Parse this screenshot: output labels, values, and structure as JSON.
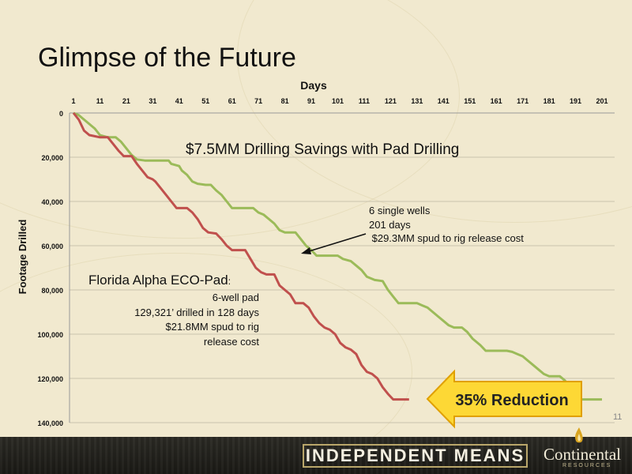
{
  "slide": {
    "title": "Glimpse of the Future",
    "page_number": "11"
  },
  "footer": {
    "tagline": "INDEPENDENT MEANS",
    "company": "Continental",
    "company_sub": "RESOURCES"
  },
  "colors": {
    "single_wells": "#9bbb59",
    "pad": "#c0504d",
    "arrow_fill": "#fdd835",
    "arrow_stroke": "#e0a000",
    "background": "#f1e9cf"
  },
  "chart_data": {
    "type": "line",
    "xlabel": "Days",
    "ylabel": "Footage Drilled",
    "x_ticks": [
      1,
      11,
      21,
      31,
      41,
      51,
      61,
      71,
      81,
      91,
      101,
      111,
      121,
      131,
      141,
      151,
      161,
      171,
      181,
      191,
      201
    ],
    "y_ticks": [
      "0",
      "20,000",
      "40,000",
      "60,000",
      "80,000",
      "100,000",
      "120,000",
      "140,000"
    ],
    "xlim": [
      1,
      205
    ],
    "ylim": [
      0,
      140000
    ],
    "y_inverted": true,
    "x_axis_position": "top",
    "grid": "horizontal",
    "series": [
      {
        "key": "single",
        "color": "#9bbb59",
        "points": [
          [
            1,
            0
          ],
          [
            3,
            1000
          ],
          [
            5,
            3000
          ],
          [
            7,
            5000
          ],
          [
            9,
            7000
          ],
          [
            11,
            10000
          ],
          [
            14,
            11000
          ],
          [
            17,
            11000
          ],
          [
            19,
            13000
          ],
          [
            21,
            16000
          ],
          [
            23,
            19000
          ],
          [
            25,
            21000
          ],
          [
            28,
            21500
          ],
          [
            31,
            21500
          ],
          [
            35,
            21500
          ],
          [
            37,
            21500
          ],
          [
            38,
            23000
          ],
          [
            41,
            24000
          ],
          [
            42,
            26000
          ],
          [
            44,
            28000
          ],
          [
            46,
            31000
          ],
          [
            48,
            32000
          ],
          [
            51,
            32500
          ],
          [
            53,
            32500
          ],
          [
            55,
            35000
          ],
          [
            57,
            37000
          ],
          [
            59,
            40000
          ],
          [
            61,
            43000
          ],
          [
            65,
            43000
          ],
          [
            69,
            43000
          ],
          [
            71,
            45000
          ],
          [
            73,
            46000
          ],
          [
            75,
            48000
          ],
          [
            77,
            50000
          ],
          [
            79,
            53000
          ],
          [
            81,
            54000
          ],
          [
            85,
            54000
          ],
          [
            87,
            57000
          ],
          [
            89,
            60000
          ],
          [
            91,
            62000
          ],
          [
            93,
            64500
          ],
          [
            101,
            64500
          ],
          [
            103,
            66000
          ],
          [
            106,
            67000
          ],
          [
            108,
            69000
          ],
          [
            110,
            71000
          ],
          [
            112,
            74000
          ],
          [
            115,
            75500
          ],
          [
            118,
            76000
          ],
          [
            120,
            80000
          ],
          [
            122,
            83000
          ],
          [
            124,
            86000
          ],
          [
            131,
            86000
          ],
          [
            133,
            87000
          ],
          [
            135,
            88000
          ],
          [
            137,
            90000
          ],
          [
            139,
            92000
          ],
          [
            141,
            94000
          ],
          [
            143,
            96000
          ],
          [
            145,
            97000
          ],
          [
            148,
            97000
          ],
          [
            150,
            99000
          ],
          [
            152,
            102000
          ],
          [
            155,
            105000
          ],
          [
            157,
            107500
          ],
          [
            165,
            107500
          ],
          [
            167,
            108000
          ],
          [
            169,
            109000
          ],
          [
            171,
            110000
          ],
          [
            173,
            112000
          ],
          [
            175,
            114000
          ],
          [
            177,
            116000
          ],
          [
            179,
            118000
          ],
          [
            181,
            119000
          ],
          [
            185,
            119000
          ],
          [
            187,
            121000
          ],
          [
            189,
            124000
          ],
          [
            191,
            126000
          ],
          [
            193,
            129500
          ],
          [
            201,
            129500
          ]
        ]
      },
      {
        "key": "pad",
        "color": "#c0504d",
        "points": [
          [
            1,
            0
          ],
          [
            3,
            3000
          ],
          [
            5,
            8000
          ],
          [
            7,
            10000
          ],
          [
            9,
            10500
          ],
          [
            11,
            11000
          ],
          [
            14,
            11000
          ],
          [
            16,
            14000
          ],
          [
            18,
            17000
          ],
          [
            20,
            19500
          ],
          [
            23,
            19500
          ],
          [
            25,
            23000
          ],
          [
            27,
            26000
          ],
          [
            29,
            29000
          ],
          [
            31,
            30000
          ],
          [
            32,
            31000
          ],
          [
            34,
            34000
          ],
          [
            36,
            37000
          ],
          [
            38,
            40000
          ],
          [
            40,
            43000
          ],
          [
            44,
            43000
          ],
          [
            46,
            45000
          ],
          [
            48,
            48000
          ],
          [
            50,
            52000
          ],
          [
            52,
            54000
          ],
          [
            55,
            54500
          ],
          [
            57,
            57000
          ],
          [
            59,
            60000
          ],
          [
            61,
            62000
          ],
          [
            66,
            62000
          ],
          [
            68,
            66000
          ],
          [
            70,
            70000
          ],
          [
            72,
            72000
          ],
          [
            74,
            73000
          ],
          [
            77,
            73000
          ],
          [
            79,
            78000
          ],
          [
            81,
            80000
          ],
          [
            83,
            82000
          ],
          [
            85,
            86000
          ],
          [
            88,
            86000
          ],
          [
            90,
            88000
          ],
          [
            92,
            92000
          ],
          [
            94,
            95000
          ],
          [
            96,
            97000
          ],
          [
            98,
            98000
          ],
          [
            100,
            100000
          ],
          [
            102,
            104000
          ],
          [
            104,
            106000
          ],
          [
            106,
            107000
          ],
          [
            108,
            109000
          ],
          [
            110,
            114000
          ],
          [
            112,
            117000
          ],
          [
            114,
            118000
          ],
          [
            116,
            120000
          ],
          [
            118,
            124000
          ],
          [
            120,
            127000
          ],
          [
            122,
            129500
          ],
          [
            128,
            129500
          ]
        ]
      }
    ],
    "annotations": {
      "headline": "$7.5MM Drilling Savings with Pad Drilling",
      "single_wells": [
        "6 single wells",
        "201 days",
        " $29.3MM spud to rig release cost"
      ],
      "pad_title": "Florida Alpha ECO-Pad",
      "pad_title_suffix": ":",
      "pad_details": [
        "6-well pad",
        "129,321’ drilled in 128 days",
        "$21.8MM spud to rig",
        "release cost"
      ],
      "reduction": "35% Reduction"
    }
  }
}
